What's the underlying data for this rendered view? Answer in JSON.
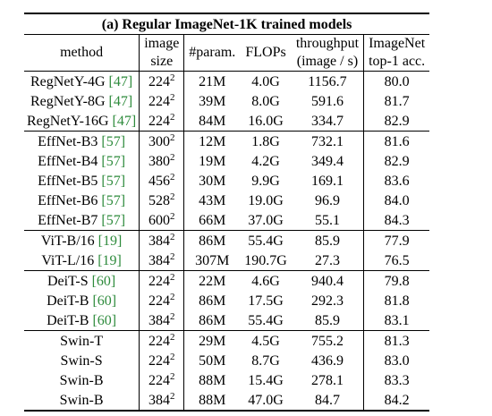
{
  "title": "(a) Regular ImageNet-1K trained models",
  "headers": {
    "method": "method",
    "image_size": [
      "image",
      "size"
    ],
    "params": "#param.",
    "flops": "FLOPs",
    "throughput": [
      "throughput",
      "(image / s)"
    ],
    "acc": [
      "ImageNet",
      "top-1 acc."
    ]
  },
  "groups": [
    [
      {
        "name": "RegNetY-4G ",
        "cite": "[47]",
        "size": "224",
        "params": "21M",
        "flops": "4.0G",
        "throughput": "1156.7",
        "acc": "80.0"
      },
      {
        "name": "RegNetY-8G ",
        "cite": "[47]",
        "size": "224",
        "params": "39M",
        "flops": "8.0G",
        "throughput": "591.6",
        "acc": "81.7"
      },
      {
        "name": "RegNetY-16G ",
        "cite": "[47]",
        "size": "224",
        "params": "84M",
        "flops": "16.0G",
        "throughput": "334.7",
        "acc": "82.9"
      }
    ],
    [
      {
        "name": "EffNet-B3 ",
        "cite": "[57]",
        "size": "300",
        "params": "12M",
        "flops": "1.8G",
        "throughput": "732.1",
        "acc": "81.6"
      },
      {
        "name": "EffNet-B4 ",
        "cite": "[57]",
        "size": "380",
        "params": "19M",
        "flops": "4.2G",
        "throughput": "349.4",
        "acc": "82.9"
      },
      {
        "name": "EffNet-B5 ",
        "cite": "[57]",
        "size": "456",
        "params": "30M",
        "flops": "9.9G",
        "throughput": "169.1",
        "acc": "83.6"
      },
      {
        "name": "EffNet-B6 ",
        "cite": "[57]",
        "size": "528",
        "params": "43M",
        "flops": "19.0G",
        "throughput": "96.9",
        "acc": "84.0"
      },
      {
        "name": "EffNet-B7 ",
        "cite": "[57]",
        "size": "600",
        "params": "66M",
        "flops": "37.0G",
        "throughput": "55.1",
        "acc": "84.3"
      }
    ],
    [
      {
        "name": "ViT-B/16 ",
        "cite": "[19]",
        "size": "384",
        "params": "86M",
        "flops": "55.4G",
        "throughput": "85.9",
        "acc": "77.9"
      },
      {
        "name": "ViT-L/16 ",
        "cite": "[19]",
        "size": "384",
        "params": "307M",
        "flops": "190.7G",
        "throughput": "27.3",
        "acc": "76.5"
      }
    ],
    [
      {
        "name": "DeiT-S ",
        "cite": "[60]",
        "size": "224",
        "params": "22M",
        "flops": "4.6G",
        "throughput": "940.4",
        "acc": "79.8"
      },
      {
        "name": "DeiT-B ",
        "cite": "[60]",
        "size": "224",
        "params": "86M",
        "flops": "17.5G",
        "throughput": "292.3",
        "acc": "81.8"
      },
      {
        "name": "DeiT-B ",
        "cite": "[60]",
        "size": "384",
        "params": "86M",
        "flops": "55.4G",
        "throughput": "85.9",
        "acc": "83.1"
      }
    ],
    [
      {
        "name": "Swin-T",
        "cite": "",
        "size": "224",
        "params": "29M",
        "flops": "4.5G",
        "throughput": "755.2",
        "acc": "81.3"
      },
      {
        "name": "Swin-S",
        "cite": "",
        "size": "224",
        "params": "50M",
        "flops": "8.7G",
        "throughput": "436.9",
        "acc": "83.0"
      },
      {
        "name": "Swin-B",
        "cite": "",
        "size": "224",
        "params": "88M",
        "flops": "15.4G",
        "throughput": "278.1",
        "acc": "83.3"
      },
      {
        "name": "Swin-B",
        "cite": "",
        "size": "384",
        "params": "88M",
        "flops": "47.0G",
        "throughput": "84.7",
        "acc": "84.2"
      }
    ]
  ],
  "size_exponent": "2"
}
